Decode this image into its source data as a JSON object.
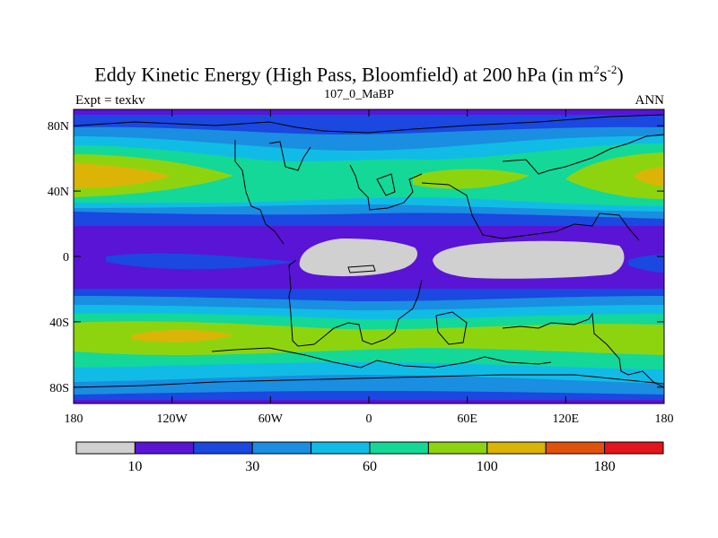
{
  "title_main": "Eddy Kinetic Energy (High Pass, Bloomfield) at 200 hPa (in m",
  "title_sup1": "2",
  "title_mid": "s",
  "title_sup2": "-2",
  "title_end": ")",
  "subtitle": "107_0_MaBP",
  "left_label": "Expt = texkv",
  "right_label": "ANN",
  "map": {
    "lat_ticks": [
      {
        "value": 80,
        "label": "80N"
      },
      {
        "value": 40,
        "label": "40N"
      },
      {
        "value": 0,
        "label": "0"
      },
      {
        "value": -40,
        "label": "40S"
      },
      {
        "value": -80,
        "label": "80S"
      }
    ],
    "lon_ticks": [
      {
        "value": -180,
        "label": "180"
      },
      {
        "value": -120,
        "label": "120W"
      },
      {
        "value": -60,
        "label": "60W"
      },
      {
        "value": 0,
        "label": "0"
      },
      {
        "value": 60,
        "label": "60E"
      },
      {
        "value": 120,
        "label": "120E"
      },
      {
        "value": 180,
        "label": "180"
      }
    ],
    "lon_range": [
      -180,
      180
    ],
    "lat_range": [
      -90,
      90
    ]
  },
  "colorbar": {
    "colors": [
      "#d0d0d0",
      "#5a14d6",
      "#1a48e0",
      "#1a8ee0",
      "#10bce6",
      "#14d898",
      "#8ed40e",
      "#dcb408",
      "#e0520c",
      "#e4141c"
    ],
    "labels": [
      {
        "boundary": 1,
        "text": "10"
      },
      {
        "boundary": 3,
        "text": "30"
      },
      {
        "boundary": 5,
        "text": "60"
      },
      {
        "boundary": 7,
        "text": "100"
      },
      {
        "boundary": 9,
        "text": "180"
      }
    ]
  }
}
